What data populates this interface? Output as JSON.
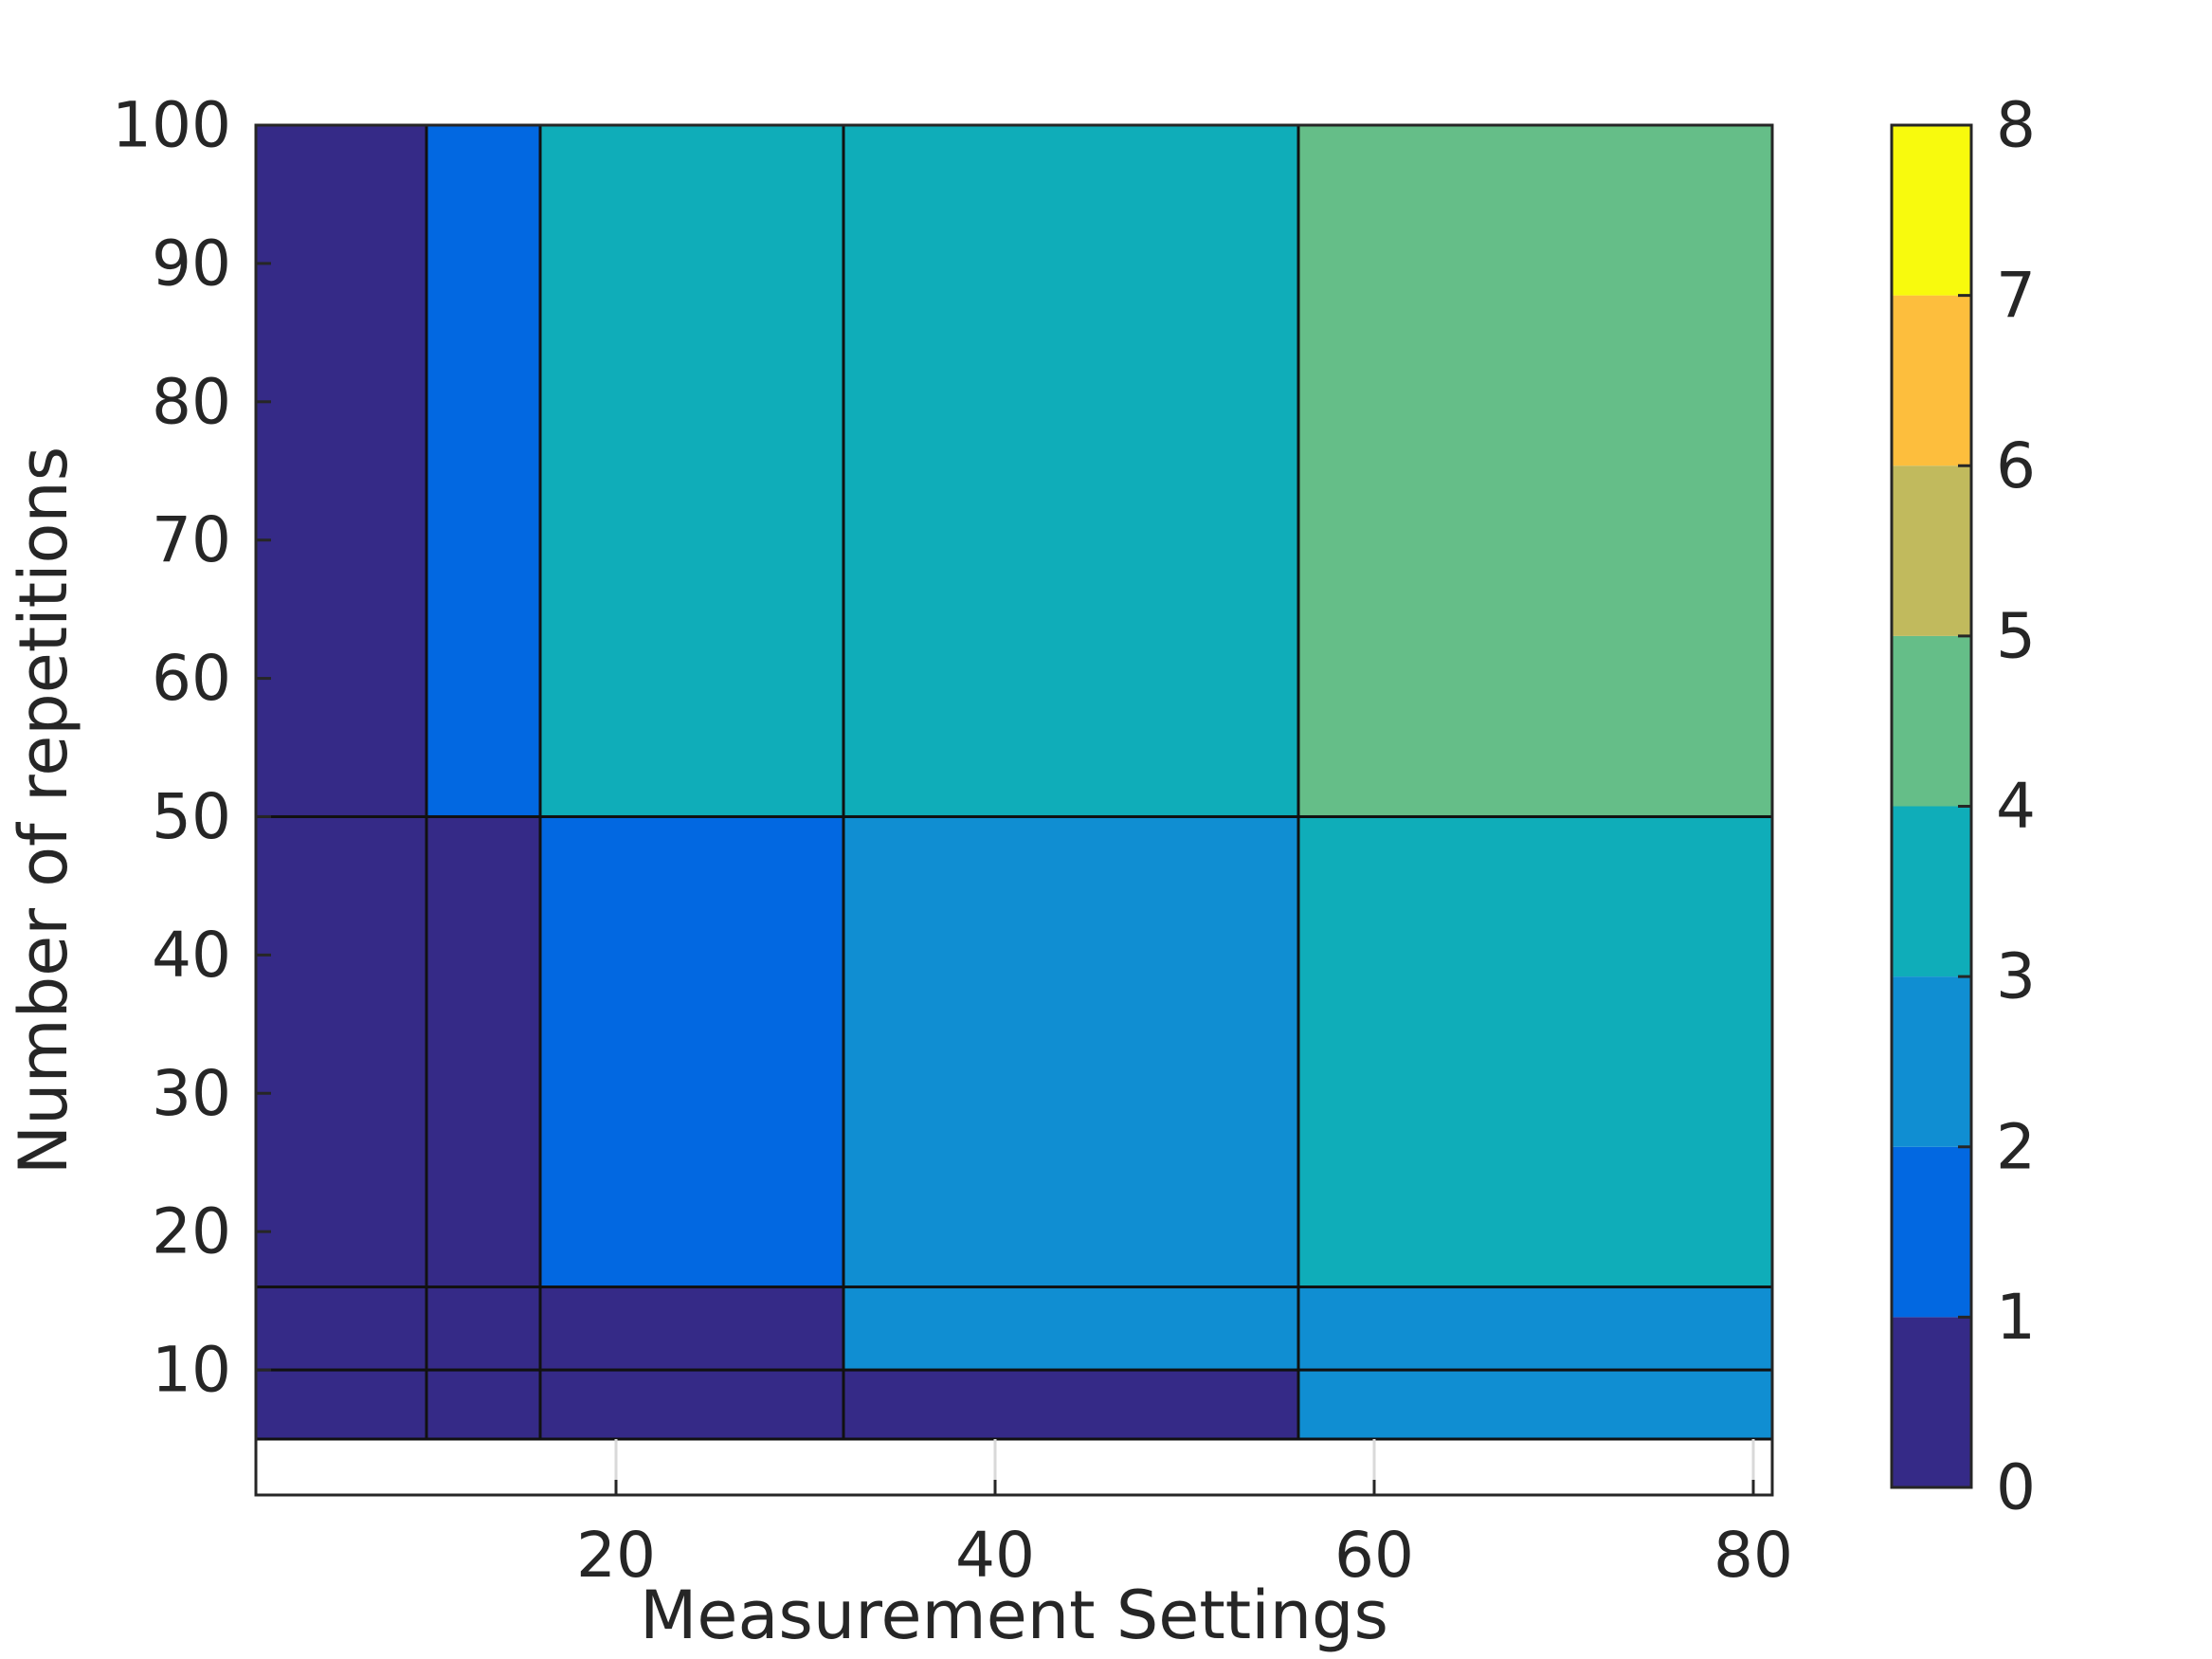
{
  "chart_data": {
    "type": "heatmap",
    "xlabel": "Measurement Settings",
    "ylabel": "Number of repetitions",
    "xlim": [
      1,
      81
    ],
    "ylim": [
      5,
      100
    ],
    "x_ticks": [
      20,
      40,
      60,
      80
    ],
    "y_ticks": [
      10,
      20,
      30,
      40,
      50,
      60,
      70,
      80,
      90,
      100
    ],
    "x_edges": [
      1,
      10,
      16,
      32,
      56,
      81
    ],
    "y_edges": [
      5,
      10,
      16,
      50,
      100
    ],
    "values": [
      [
        0,
        0,
        0,
        0,
        2
      ],
      [
        0,
        0,
        0,
        2,
        2
      ],
      [
        0,
        0,
        1,
        2,
        3
      ],
      [
        0,
        1,
        3,
        3,
        4
      ]
    ],
    "colorbar": {
      "limits": [
        0,
        8
      ],
      "ticks": [
        0,
        1,
        2,
        3,
        4,
        5,
        6,
        7,
        8
      ],
      "colors": [
        "#352a87",
        "#0268e1",
        "#108ed2",
        "#0fadb9",
        "#65be88",
        "#c1ba5d",
        "#fdbe3d",
        "#f8fa0d"
      ]
    },
    "grid": false
  }
}
